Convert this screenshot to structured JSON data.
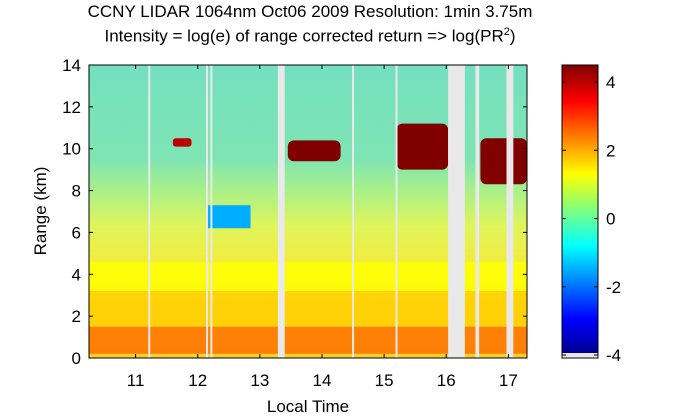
{
  "chart_data": {
    "type": "heatmap",
    "title": "CCNY LIDAR 1064nm Oct06 2009 Resolution: 1min 3.75m",
    "subtitle": {
      "prefix": "Intensity = log(e) of range corrected return => log(PR",
      "superscript": "2",
      "suffix": ")"
    },
    "xlabel": "Local Time",
    "ylabel": "Range (km)",
    "xlim": [
      10.25,
      17.3
    ],
    "ylim": [
      0,
      14
    ],
    "xticks": [
      11,
      12,
      13,
      14,
      15,
      16,
      17
    ],
    "yticks": [
      0,
      2,
      4,
      6,
      8,
      10,
      12,
      14
    ],
    "colorbar": {
      "range": [
        -4,
        4.5
      ],
      "ticks": [
        -4,
        -2,
        0,
        2,
        4
      ],
      "colormap": "jet",
      "missing_color": "#e9e9e9"
    },
    "no_data_intervals": [
      [
        13.29,
        13.4
      ],
      [
        16.03,
        16.3
      ],
      [
        16.47,
        16.53
      ],
      [
        16.97,
        17.08
      ]
    ],
    "data_gaps_thin": [
      11.22,
      12.15,
      12.22,
      14.5,
      15.2
    ],
    "features": [
      {
        "label": "near-surface layer",
        "x": [
          10.25,
          17.3
        ],
        "y": [
          0.2,
          1.5
        ],
        "value": 2.5
      },
      {
        "label": "boundary layer",
        "x": [
          10.25,
          17.3
        ],
        "y": [
          1.5,
          3.2
        ],
        "value": 1.7
      },
      {
        "label": "aerosol layer",
        "x": [
          10.25,
          17.3
        ],
        "y": [
          3.2,
          4.6
        ],
        "value": 1.3
      },
      {
        "label": "cloud",
        "x": [
          11.6,
          11.9
        ],
        "y": [
          10.1,
          10.5
        ],
        "value": 4.0
      },
      {
        "label": "cloud",
        "x": [
          13.45,
          14.3
        ],
        "y": [
          9.4,
          10.4
        ],
        "value": 4.5
      },
      {
        "label": "cloud",
        "x": [
          15.2,
          16.03
        ],
        "y": [
          9.0,
          11.2
        ],
        "value": 4.5
      },
      {
        "label": "cloud",
        "x": [
          16.55,
          17.3
        ],
        "y": [
          8.3,
          10.5
        ],
        "value": 4.5
      },
      {
        "label": "clear-air region",
        "x": [
          12.15,
          12.85
        ],
        "y": [
          6.2,
          7.3
        ],
        "value": -1.5
      }
    ]
  }
}
